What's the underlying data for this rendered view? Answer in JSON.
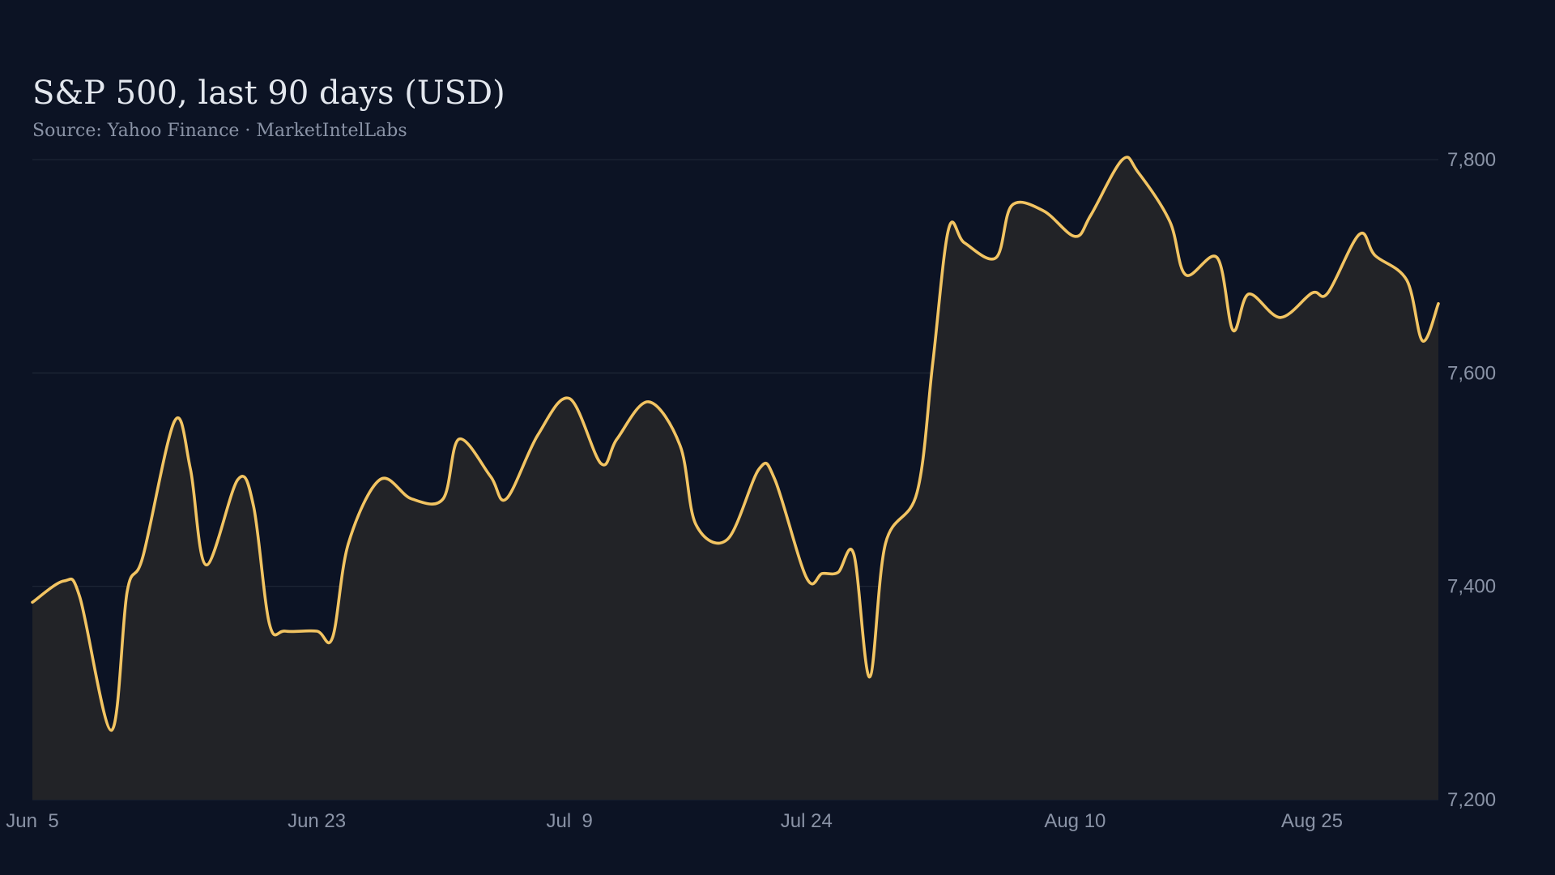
{
  "chart_data": {
    "type": "area",
    "title": "S&P 500, last 90 days (USD)",
    "subtitle": "Source: Yahoo Finance · MarketIntelLabs",
    "xlabel": "",
    "ylabel": "",
    "ylim": [
      7200,
      7800
    ],
    "y_ticks": [
      7200,
      7400,
      7600,
      7800
    ],
    "y_tick_labels": [
      "7,200",
      "7,400",
      "7,600",
      "7,800"
    ],
    "y_axis_position": "right",
    "x_range": [
      "2025-06-05",
      "2025-09-02"
    ],
    "x_ticks": [
      "2025-06-05",
      "2025-06-23",
      "2025-07-09",
      "2025-07-24",
      "2025-08-10",
      "2025-08-25"
    ],
    "x_tick_labels": [
      "Jun  5",
      "Jun 23",
      "Jul  9",
      "Jul 24",
      "Aug 10",
      "Aug 25"
    ],
    "grid": true,
    "legend": "none",
    "colors": {
      "line": "#f2c462",
      "area": "#222327",
      "background": "#0c1324"
    },
    "series": [
      {
        "dates": [
          "2025-06-05",
          "2025-06-07",
          "2025-06-08",
          "2025-06-10",
          "2025-06-11",
          "2025-06-12",
          "2025-06-14",
          "2025-06-15",
          "2025-06-16",
          "2025-06-18",
          "2025-06-19",
          "2025-06-20",
          "2025-06-21",
          "2025-06-23",
          "2025-06-24",
          "2025-06-25",
          "2025-06-27",
          "2025-06-29",
          "2025-07-01",
          "2025-07-02",
          "2025-07-04",
          "2025-07-05",
          "2025-07-07",
          "2025-07-09",
          "2025-07-11",
          "2025-07-12",
          "2025-07-14",
          "2025-07-16",
          "2025-07-17",
          "2025-07-19",
          "2025-07-21",
          "2025-07-22",
          "2025-07-24",
          "2025-07-25",
          "2025-07-26",
          "2025-07-27",
          "2025-07-28",
          "2025-07-29",
          "2025-07-31",
          "2025-08-01",
          "2025-08-02",
          "2025-08-03",
          "2025-08-05",
          "2025-08-06",
          "2025-08-08",
          "2025-08-10",
          "2025-08-11",
          "2025-08-13",
          "2025-08-14",
          "2025-08-16",
          "2025-08-17",
          "2025-08-19",
          "2025-08-20",
          "2025-08-21",
          "2025-08-23",
          "2025-08-25",
          "2025-08-26",
          "2025-08-28",
          "2025-08-29",
          "2025-08-31",
          "2025-09-01",
          "2025-09-02"
        ],
        "values": [
          7385,
          7405,
          7390,
          7265,
          7395,
          7428,
          7555,
          7510,
          7420,
          7500,
          7475,
          7365,
          7358,
          7358,
          7352,
          7440,
          7500,
          7482,
          7482,
          7538,
          7503,
          7482,
          7542,
          7576,
          7515,
          7538,
          7573,
          7532,
          7458,
          7444,
          7510,
          7500,
          7408,
          7412,
          7413,
          7430,
          7315,
          7440,
          7488,
          7610,
          7735,
          7722,
          7708,
          7757,
          7752,
          7728,
          7748,
          7800,
          7788,
          7742,
          7692,
          7708,
          7640,
          7674,
          7652,
          7675,
          7675,
          7730,
          7710,
          7687,
          7630,
          7665
        ]
      }
    ]
  }
}
